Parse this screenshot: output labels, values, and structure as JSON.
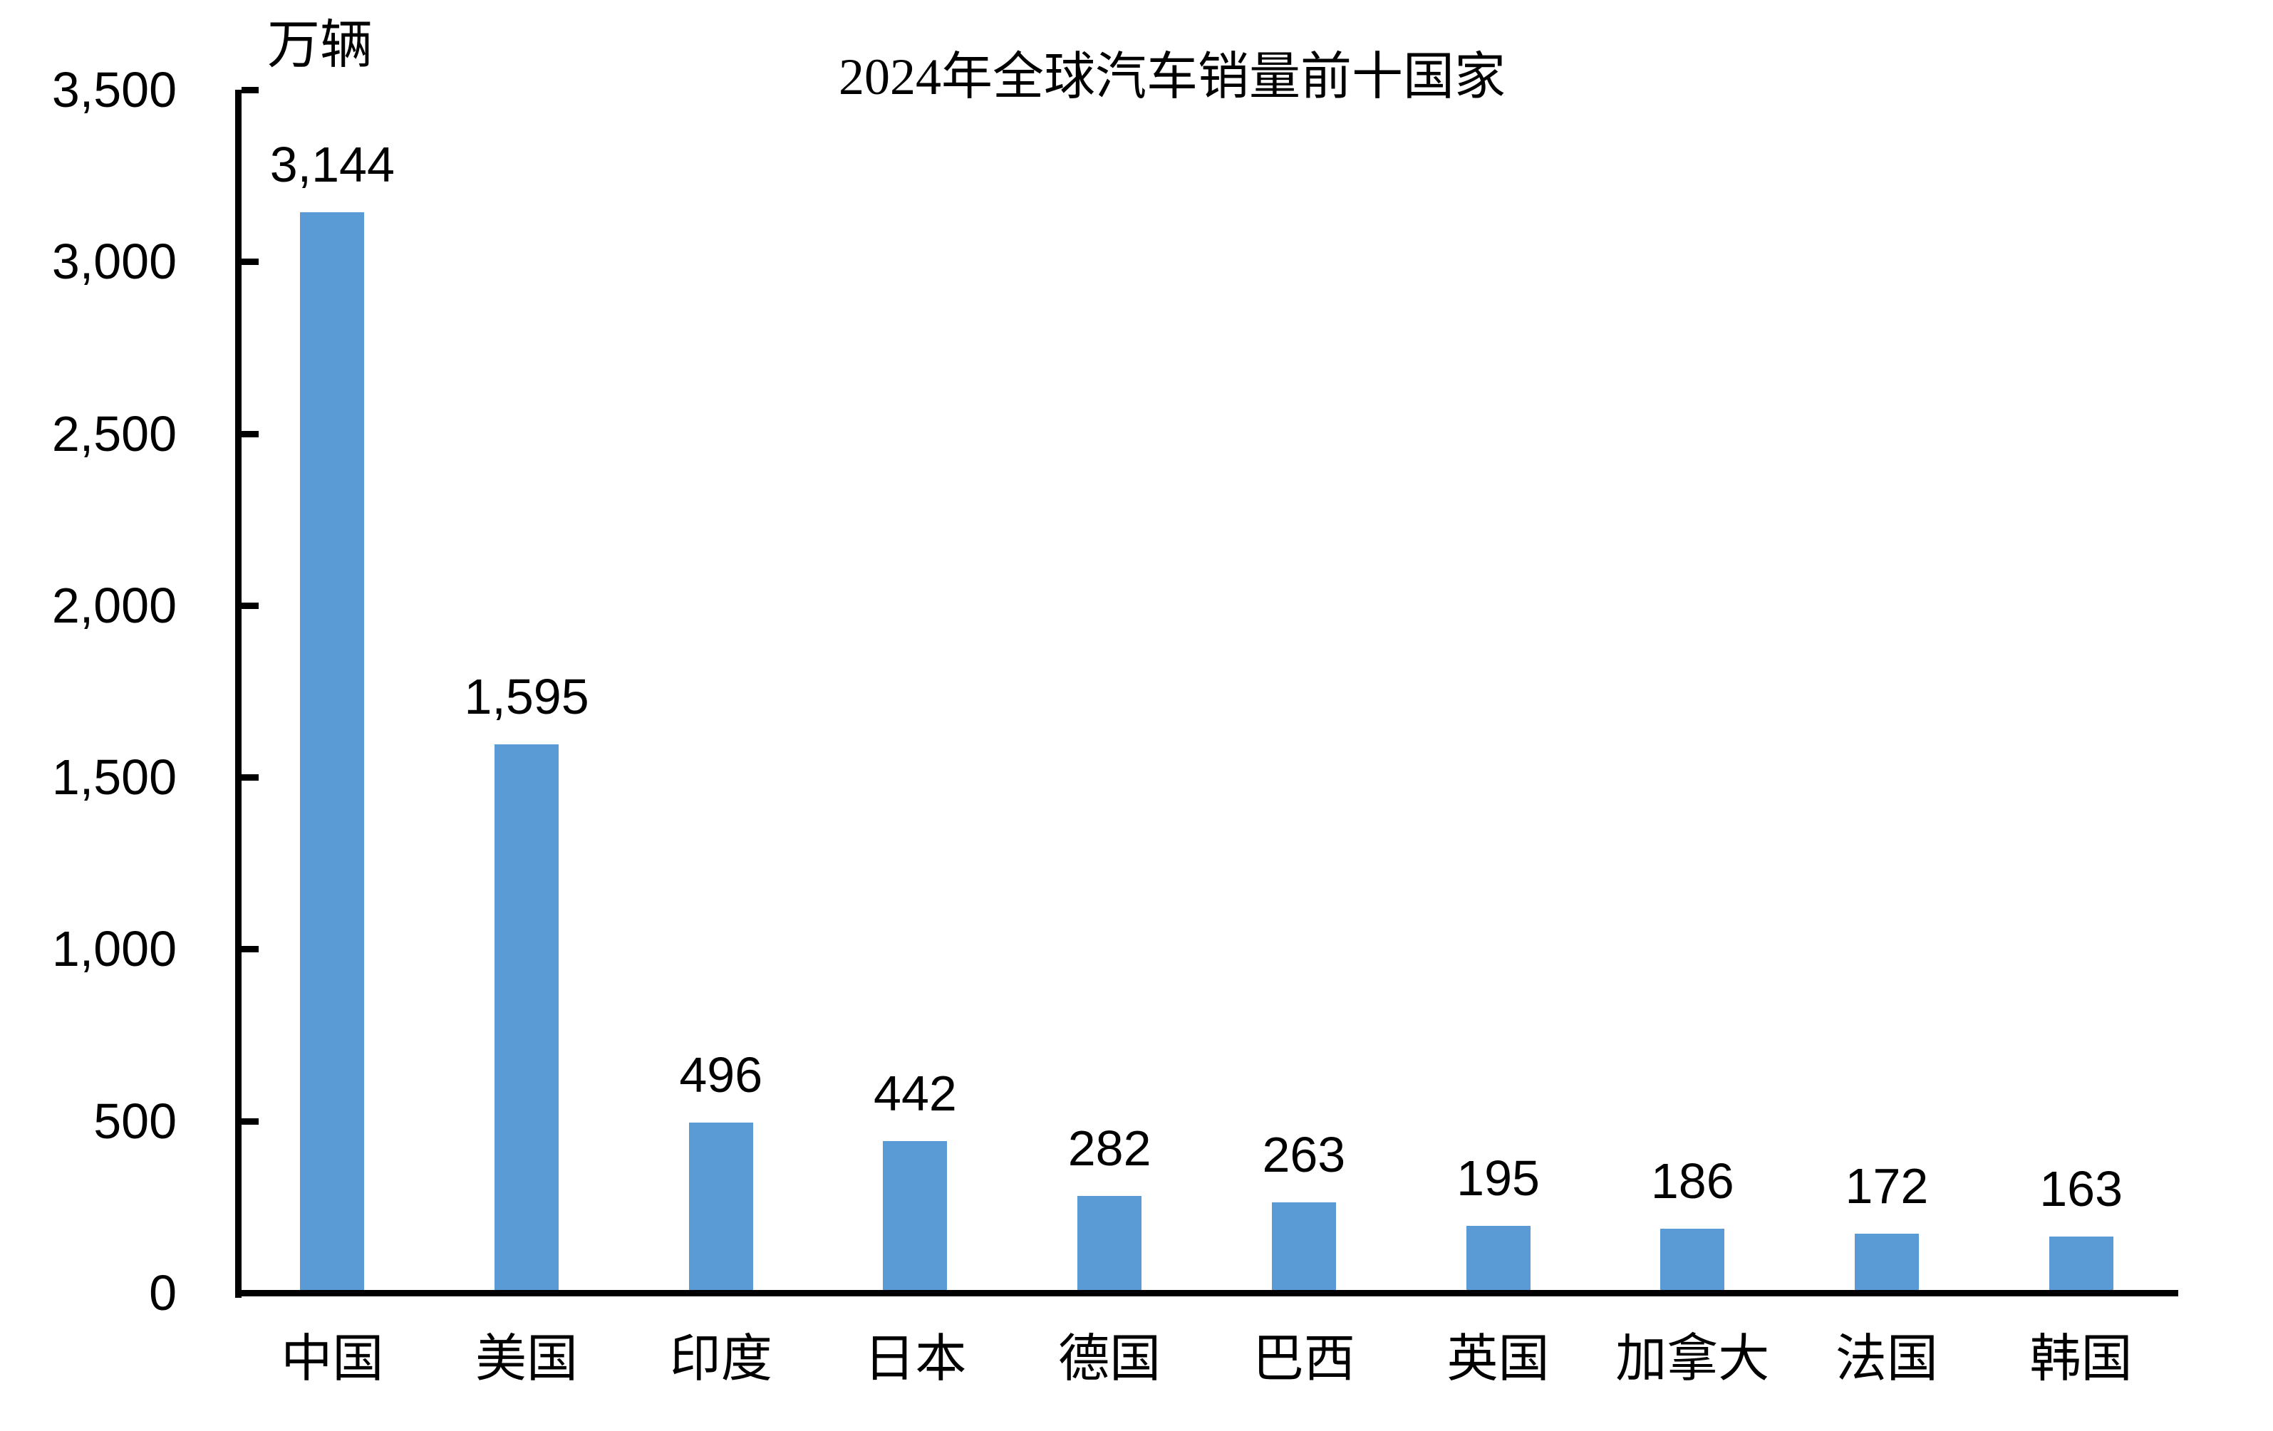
{
  "chart_data": {
    "type": "bar",
    "title": "2024年全球汽车销量前十国家",
    "unit_label": "万辆",
    "ylabel": "万辆",
    "xlabel": "",
    "categories": [
      "中国",
      "美国",
      "印度",
      "日本",
      "德国",
      "巴西",
      "英国",
      "加拿大",
      "法国",
      "韩国"
    ],
    "values": [
      3144,
      1595,
      496,
      442,
      282,
      263,
      195,
      186,
      172,
      163
    ],
    "value_labels": [
      "3,144",
      "1,595",
      "496",
      "442",
      "282",
      "263",
      "195",
      "186",
      "172",
      "163"
    ],
    "ylim": [
      0,
      3500
    ],
    "ytick_values": [
      0,
      500,
      1000,
      1500,
      2000,
      2500,
      3000,
      3500
    ],
    "ytick_labels": [
      "0",
      "500",
      "1,000",
      "1,500",
      "2,000",
      "2,500",
      "3,000",
      "3,500"
    ],
    "grid": false,
    "legend_position": "none",
    "tick_direction": "inside",
    "bar_color": "#5B9BD5",
    "axis_color": "#000000",
    "text_color": "#000000",
    "background_color": "#FFFFFF"
  }
}
